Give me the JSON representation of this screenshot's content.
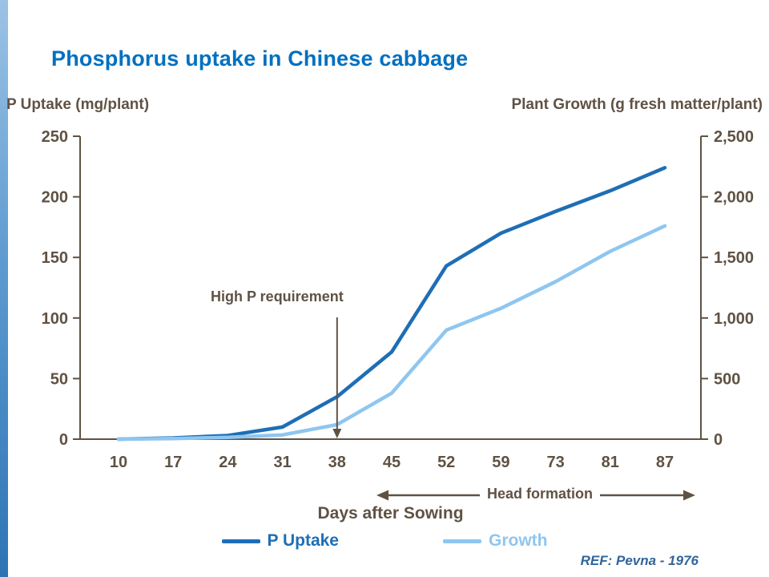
{
  "slide": {
    "title": "Phosphorus uptake in Chinese cabbage",
    "ref": "REF: Pevna - 1976"
  },
  "colors": {
    "title": "#0070C0",
    "axis": "#5F5244",
    "p_uptake": "#1E6EB5",
    "growth": "#8EC6F0",
    "ref": "#31659C",
    "accent_top": "#9CC3E5",
    "accent_bottom": "#2E74B5"
  },
  "legend": [
    {
      "label": "P Uptake",
      "color": "#1E6EB5"
    },
    {
      "label": "Growth",
      "color": "#8EC6F0"
    }
  ],
  "chart_data": {
    "type": "line",
    "title": "Phosphorus uptake in Chinese cabbage",
    "categories": [
      10,
      17,
      24,
      31,
      38,
      45,
      52,
      59,
      73,
      81,
      87
    ],
    "xlabel": "Days after Sowing",
    "grid": false,
    "legend_position": "bottom",
    "series": [
      {
        "name": "P Uptake",
        "axis": "left",
        "color": "#1E6EB5",
        "values": [
          0,
          1,
          3,
          10,
          35,
          72,
          143,
          170,
          188,
          205,
          224
        ]
      },
      {
        "name": "Growth",
        "axis": "right",
        "color": "#8EC6F0",
        "values": [
          0,
          5,
          15,
          35,
          120,
          380,
          900,
          1080,
          1300,
          1550,
          1760
        ]
      }
    ],
    "left_axis": {
      "label": "P Uptake (mg/plant)",
      "min": 0,
      "max": 250,
      "ticks": [
        0,
        50,
        100,
        150,
        200,
        250
      ],
      "tick_labels": [
        "0",
        "50",
        "100",
        "150",
        "200",
        "250"
      ]
    },
    "right_axis": {
      "label": "Plant Growth (g fresh matter/plant)",
      "min": 0,
      "max": 2500,
      "ticks": [
        0,
        500,
        1000,
        1500,
        2000,
        2500
      ],
      "tick_labels": [
        "0",
        "500",
        "1,000",
        "1,500",
        "2,000",
        "2,500"
      ]
    },
    "annotation": {
      "text": "High P requirement",
      "at_category": 38
    },
    "head_formation": {
      "text": "Head formation",
      "from_category": 45,
      "to_category": 87
    }
  }
}
